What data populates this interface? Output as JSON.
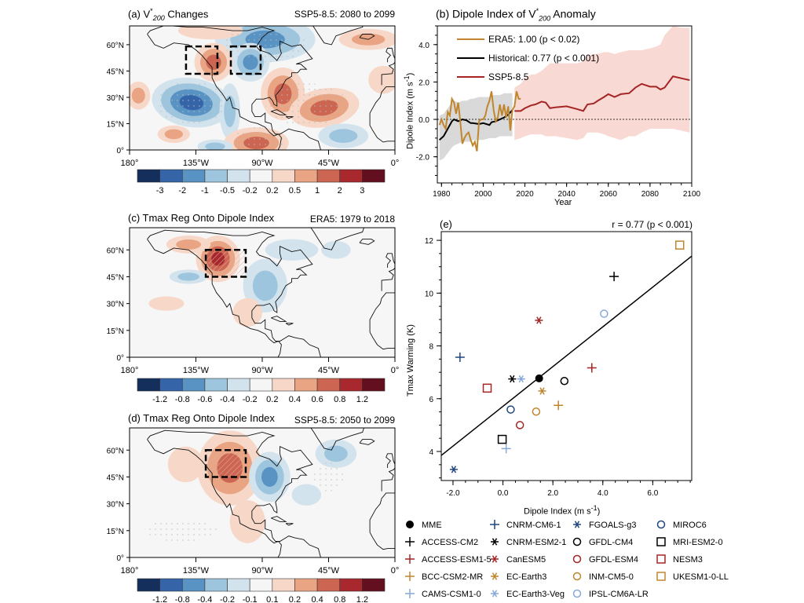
{
  "panel_a": {
    "label": "(a) V",
    "sup": "*",
    "sub": "200",
    "suffix": " Changes",
    "right": "SSP5-8.5: 2080 to 2099",
    "colorbar": [
      "-3",
      "-2",
      "-1",
      "-0.5",
      "-0.2",
      "0.2",
      "0.5",
      "1",
      "2",
      "3"
    ]
  },
  "panel_c": {
    "title": "(c) Tmax Reg Onto Dipole Index",
    "right": "ERA5: 1979 to 2018",
    "colorbar": [
      "-1.2",
      "-0.8",
      "-0.6",
      "-0.4",
      "-0.2",
      "0.2",
      "0.4",
      "0.6",
      "0.8",
      "1.2"
    ]
  },
  "panel_d": {
    "title": "(d) Tmax Reg Onto Dipole Index",
    "right": "SSP5-8.5: 2050 to 2099",
    "colorbar": [
      "-1.2",
      "-0.8",
      "-0.4",
      "-0.2",
      "-0.1",
      "0.1",
      "0.2",
      "0.4",
      "0.8",
      "1.2"
    ]
  },
  "map_axes": {
    "lat": [
      "0°",
      "15°N",
      "30°N",
      "45°N",
      "60°N"
    ],
    "lon": [
      "180°",
      "135°W",
      "90°W",
      "45°W",
      "0°"
    ]
  },
  "colors": {
    "colorbar": [
      "#152f5c",
      "#3565a8",
      "#5893c4",
      "#9dc6de",
      "#d3e3ed",
      "#f5f5f5",
      "#f7d8c8",
      "#e8a483",
      "#cc6652",
      "#a8282e",
      "#630f20"
    ],
    "era5": "#c0862e",
    "historical": "#000000",
    "ssp": "#a52525",
    "ssp_band": "#f8d9d3",
    "hist_band": "#d9d9d9"
  },
  "chart_data": [
    {
      "type": "line",
      "title": "(b) Dipole Index of V*200 Anomaly",
      "title_parts": {
        "label": "(b) Dipole Index of V",
        "sup": "*",
        "sub": "200",
        "suffix": "  Anomaly"
      },
      "xlabel": "Year",
      "ylabel": "Dipole Index (m s-1)",
      "ylabel_parts": {
        "main": "Dipole Index (m s",
        "sup": "-1",
        "end": ")"
      },
      "xlim": [
        1978,
        2100
      ],
      "ylim": [
        -3.4,
        5
      ],
      "xticks": [
        "1980",
        "2000",
        "2020",
        "2040",
        "2060",
        "2080",
        "2100"
      ],
      "yticks": [
        "-2.0",
        "0.0",
        "2.0",
        "4.0"
      ],
      "zero_line": "dotted",
      "legend_position": "top-left",
      "series": [
        {
          "name": "ERA5: 1.00 (p < 0.02)",
          "color": "#c0862e",
          "x": [
            1979,
            1980,
            1981,
            1982,
            1983,
            1984,
            1985,
            1986,
            1987,
            1988,
            1989,
            1990,
            1991,
            1992,
            1993,
            1994,
            1995,
            1996,
            1997,
            1998,
            1999,
            2000,
            2001,
            2002,
            2003,
            2004,
            2005,
            2006,
            2007,
            2008,
            2009,
            2010,
            2011,
            2012,
            2013,
            2014,
            2015,
            2016,
            2017,
            2018
          ],
          "y": [
            -0.3,
            0.0,
            -0.3,
            -0.5,
            0.4,
            0.2,
            1.1,
            0.9,
            0.3,
            0.9,
            -0.1,
            -1.3,
            -1.0,
            -0.8,
            -0.7,
            -1.1,
            -1.4,
            -1.2,
            -1.7,
            -0.1,
            0.0,
            0.0,
            0.2,
            0.7,
            1.0,
            1.5,
            0.5,
            -0.1,
            0.1,
            0.8,
            0.2,
            0.8,
            0.1,
            0.7,
            -0.6,
            0.5,
            0.7,
            1.5,
            1.1,
            1.1
          ]
        },
        {
          "name": "Historical: 0.77 (p < 0.001)",
          "color": "#000000",
          "x": [
            1979,
            1981,
            1983,
            1985,
            1986,
            1988,
            1990,
            1992,
            1994,
            1995,
            1998,
            2000,
            2003,
            2004,
            2006,
            2008,
            2010,
            2012,
            2014
          ],
          "y": [
            -1.1,
            -0.9,
            -0.5,
            -0.1,
            0.0,
            -0.1,
            0.0,
            -0.05,
            -0.2,
            -0.2,
            -0.25,
            -0.2,
            -0.3,
            -0.15,
            -0.1,
            0.0,
            0.1,
            0.25,
            0.5
          ],
          "band_upper": [
            0.2,
            0.3,
            0.6,
            0.9,
            1.0,
            0.9,
            1.0,
            1.0,
            1.1,
            1.1,
            1.2,
            1.2,
            1.2,
            1.3,
            1.3,
            1.3,
            1.4,
            1.4,
            1.4
          ],
          "band_lower": [
            -2.2,
            -2.1,
            -1.8,
            -1.5,
            -1.4,
            -1.3,
            -1.2,
            -1.2,
            -1.2,
            -1.1,
            -1.1,
            -1.1,
            -1.0,
            -1.0,
            -1.0,
            -0.9,
            -0.9,
            -0.9,
            -0.9
          ]
        },
        {
          "name": "SSP5-8.5",
          "color": "#a52525",
          "x": [
            2015,
            2018,
            2020,
            2023,
            2025,
            2028,
            2030,
            2032,
            2035,
            2040,
            2045,
            2048,
            2050,
            2053,
            2055,
            2058,
            2060,
            2063,
            2066,
            2070,
            2073,
            2076,
            2080,
            2083,
            2085,
            2087,
            2091,
            2095,
            2099
          ],
          "y": [
            0.45,
            0.45,
            0.6,
            0.75,
            0.8,
            0.95,
            0.9,
            0.6,
            0.65,
            0.7,
            0.55,
            0.45,
            0.8,
            0.85,
            1.0,
            1.2,
            1.35,
            1.2,
            1.35,
            1.4,
            1.7,
            1.9,
            1.75,
            1.75,
            1.6,
            1.7,
            2.3,
            2.2,
            2.1
          ],
          "band_upper": [
            1.7,
            1.9,
            2.2,
            2.4,
            2.4,
            2.6,
            2.8,
            3.0,
            3.0,
            3.0,
            3.0,
            3.1,
            3.4,
            3.5,
            3.5,
            3.6,
            3.6,
            3.5,
            3.6,
            3.7,
            3.7,
            3.7,
            3.8,
            3.9,
            4.0,
            4.5,
            5.0,
            4.9,
            4.9
          ],
          "band_lower": [
            -1.1,
            -1.0,
            -0.9,
            -0.8,
            -0.8,
            -0.8,
            -0.9,
            -0.9,
            -0.9,
            -1.0,
            -1.1,
            -1.0,
            -0.7,
            -0.7,
            -0.7,
            -0.8,
            -0.9,
            -1.0,
            -1.1,
            -0.9,
            -0.9,
            -0.7,
            -0.5,
            -0.5,
            -0.5,
            -0.5,
            -0.5,
            -0.6,
            -0.7
          ]
        }
      ]
    },
    {
      "type": "scatter",
      "title": "(e)",
      "annotation": "r = 0.77 (p < 0.001)",
      "xlabel": "Dipole Index (m s-1)",
      "xlabel_parts": {
        "main": "Dipole Index (m s",
        "sup": "-1",
        "end": ")"
      },
      "ylabel": "Tmax Warming (K)",
      "xlim": [
        -2.47,
        7.56
      ],
      "ylim": [
        2.9,
        12.33
      ],
      "xticks": [
        "-2.0",
        "0.0",
        "2.0",
        "4.0",
        "6.0"
      ],
      "yticks": [
        "4",
        "6",
        "8",
        "10",
        "12"
      ],
      "regression": {
        "slope": 0.753,
        "intercept": 5.71
      },
      "legend_position": "below",
      "points": [
        {
          "name": "MME",
          "marker": "dot",
          "color": "#000000",
          "x": 1.45,
          "y": 6.77
        },
        {
          "name": "ACCESS-CM2",
          "marker": "plus",
          "color": "#000000",
          "x": 4.45,
          "y": 10.63
        },
        {
          "name": "ACCESS-ESM1-5",
          "marker": "plus",
          "color": "#a52525",
          "x": 3.56,
          "y": 7.17
        },
        {
          "name": "BCC-CSM2-MR",
          "marker": "plus",
          "color": "#c0862e",
          "x": 2.22,
          "y": 5.75
        },
        {
          "name": "CAMS-CSM1-0",
          "marker": "plus",
          "color": "#86a9d8",
          "x": 0.13,
          "y": 4.11
        },
        {
          "name": "CNRM-CM6-1",
          "marker": "plus",
          "color": "#1f4680",
          "x": -1.72,
          "y": 7.57
        },
        {
          "name": "CNRM-ESM2-1",
          "marker": "star",
          "color": "#000000",
          "x": 0.37,
          "y": 6.75
        },
        {
          "name": "CanESM5",
          "marker": "star",
          "color": "#a52525",
          "x": 1.44,
          "y": 8.97
        },
        {
          "name": "EC-Earth3",
          "marker": "star",
          "color": "#c0862e",
          "x": 1.57,
          "y": 6.29
        },
        {
          "name": "EC-Earth3-Veg",
          "marker": "star",
          "color": "#86a9d8",
          "x": 0.73,
          "y": 6.75
        },
        {
          "name": "FGOALS-g3",
          "marker": "star",
          "color": "#1f4680",
          "x": -1.97,
          "y": 3.32
        },
        {
          "name": "GFDL-CM4",
          "marker": "circle",
          "color": "#000000",
          "x": 2.46,
          "y": 6.67
        },
        {
          "name": "GFDL-ESM4",
          "marker": "circle",
          "color": "#a52525",
          "x": 0.68,
          "y": 5.0
        },
        {
          "name": "INM-CM5-0",
          "marker": "circle",
          "color": "#c0862e",
          "x": 1.33,
          "y": 5.51
        },
        {
          "name": "IPSL-CM6A-LR",
          "marker": "circle",
          "color": "#86a9d8",
          "x": 4.05,
          "y": 9.22
        },
        {
          "name": "MIROC6",
          "marker": "circle",
          "color": "#1f4680",
          "x": 0.31,
          "y": 5.59
        },
        {
          "name": "MRI-ESM2-0",
          "marker": "square",
          "color": "#000000",
          "x": -0.03,
          "y": 4.46
        },
        {
          "name": "NESM3",
          "marker": "square",
          "color": "#a52525",
          "x": -0.63,
          "y": 6.4
        },
        {
          "name": "UKESM1-0-LL",
          "marker": "square",
          "color": "#c0862e",
          "x": 7.08,
          "y": 11.82
        }
      ]
    }
  ]
}
